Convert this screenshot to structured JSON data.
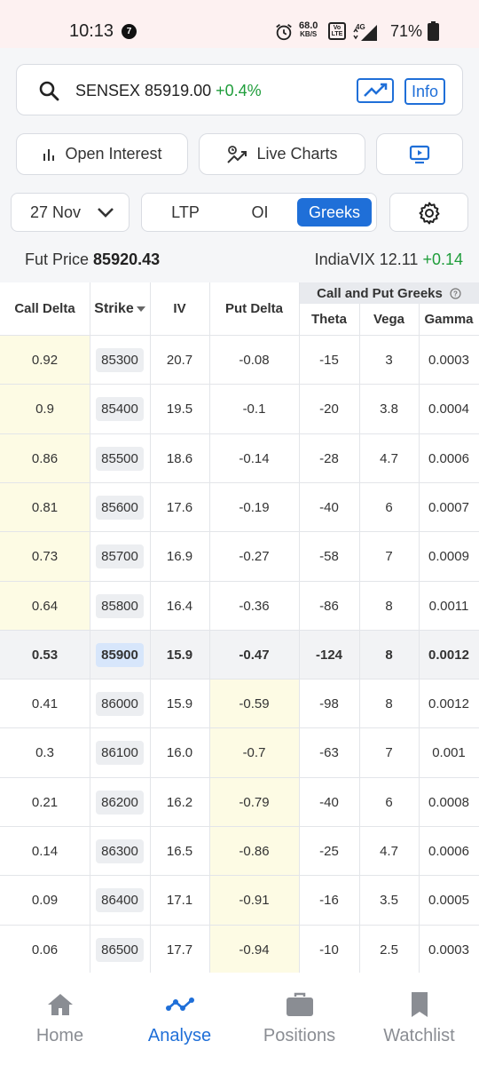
{
  "status_bar": {
    "time": "10:13",
    "notification_count": "7",
    "net_speed": "68.0",
    "net_unit": "KB/S",
    "volte": "Vo LTE",
    "network": "4G",
    "battery": "71%"
  },
  "search": {
    "symbol": "SENSEX",
    "price": "85919.00",
    "change": "+0.4%",
    "info_label": "Info"
  },
  "actions": {
    "open_interest": "Open Interest",
    "live_charts": "Live Charts"
  },
  "controls": {
    "expiry": "27 Nov",
    "tabs": [
      {
        "label": "LTP",
        "active": false
      },
      {
        "label": "OI",
        "active": false
      },
      {
        "label": "Greeks",
        "active": true
      }
    ]
  },
  "market": {
    "fut_label": "Fut Price",
    "fut_price": "85920.43",
    "vix_label": "IndiaVIX",
    "vix_value": "12.11",
    "vix_change": "+0.14"
  },
  "table": {
    "headers": {
      "call_delta": "Call Delta",
      "strike": "Strike",
      "iv": "IV",
      "put_delta": "Put Delta",
      "group": "Call and Put Greeks",
      "theta": "Theta",
      "vega": "Vega",
      "gamma": "Gamma"
    },
    "rows": [
      {
        "call_delta": "0.92",
        "strike": "85300",
        "iv": "20.7",
        "put_delta": "-0.08",
        "theta": "-15",
        "vega": "3",
        "gamma": "0.0003"
      },
      {
        "call_delta": "0.9",
        "strike": "85400",
        "iv": "19.5",
        "put_delta": "-0.1",
        "theta": "-20",
        "vega": "3.8",
        "gamma": "0.0004"
      },
      {
        "call_delta": "0.86",
        "strike": "85500",
        "iv": "18.6",
        "put_delta": "-0.14",
        "theta": "-28",
        "vega": "4.7",
        "gamma": "0.0006"
      },
      {
        "call_delta": "0.81",
        "strike": "85600",
        "iv": "17.6",
        "put_delta": "-0.19",
        "theta": "-40",
        "vega": "6",
        "gamma": "0.0007"
      },
      {
        "call_delta": "0.73",
        "strike": "85700",
        "iv": "16.9",
        "put_delta": "-0.27",
        "theta": "-58",
        "vega": "7",
        "gamma": "0.0009"
      },
      {
        "call_delta": "0.64",
        "strike": "85800",
        "iv": "16.4",
        "put_delta": "-0.36",
        "theta": "-86",
        "vega": "8",
        "gamma": "0.0011"
      },
      {
        "call_delta": "0.53",
        "strike": "85900",
        "iv": "15.9",
        "put_delta": "-0.47",
        "theta": "-124",
        "vega": "8",
        "gamma": "0.0012"
      },
      {
        "call_delta": "0.41",
        "strike": "86000",
        "iv": "15.9",
        "put_delta": "-0.59",
        "theta": "-98",
        "vega": "8",
        "gamma": "0.0012"
      },
      {
        "call_delta": "0.3",
        "strike": "86100",
        "iv": "16.0",
        "put_delta": "-0.7",
        "theta": "-63",
        "vega": "7",
        "gamma": "0.001"
      },
      {
        "call_delta": "0.21",
        "strike": "86200",
        "iv": "16.2",
        "put_delta": "-0.79",
        "theta": "-40",
        "vega": "6",
        "gamma": "0.0008"
      },
      {
        "call_delta": "0.14",
        "strike": "86300",
        "iv": "16.5",
        "put_delta": "-0.86",
        "theta": "-25",
        "vega": "4.7",
        "gamma": "0.0006"
      },
      {
        "call_delta": "0.09",
        "strike": "86400",
        "iv": "17.1",
        "put_delta": "-0.91",
        "theta": "-16",
        "vega": "3.5",
        "gamma": "0.0005"
      },
      {
        "call_delta": "0.06",
        "strike": "86500",
        "iv": "17.7",
        "put_delta": "-0.94",
        "theta": "-10",
        "vega": "2.5",
        "gamma": "0.0003"
      }
    ],
    "atm_strike": "85900"
  },
  "nav": [
    {
      "label": "Home",
      "icon": "home-icon",
      "active": false
    },
    {
      "label": "Analyse",
      "icon": "analyse-icon",
      "active": true
    },
    {
      "label": "Positions",
      "icon": "briefcase-icon",
      "active": false
    },
    {
      "label": "Watchlist",
      "icon": "bookmark-icon",
      "active": false
    }
  ],
  "colors": {
    "accent": "#1f6fd8",
    "positive": "#1f9d3b",
    "itm_highlight": "#fdfbe4"
  }
}
